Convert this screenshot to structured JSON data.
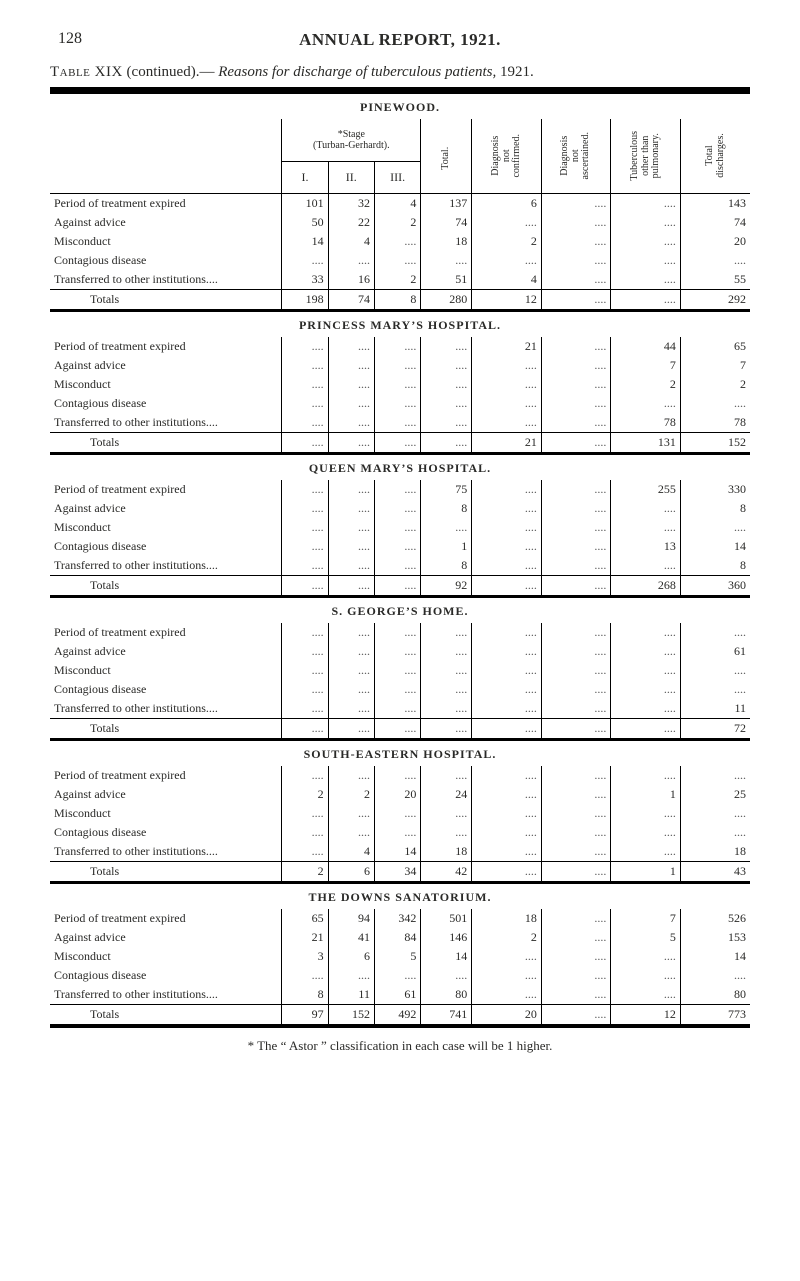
{
  "page": {
    "number": "128",
    "title": "ANNUAL REPORT, 1921.",
    "table_caption_a": "Table XIX",
    "table_caption_b": "(continued).—",
    "table_caption_c": "Reasons for discharge of tuberculous patients,",
    "table_caption_year": "1921.",
    "footnote": "* The “ Astor ” classification in each case will be 1 higher."
  },
  "headers": {
    "stage": "*Stage\n(Turban-Gerhardt).",
    "stage_i": "I.",
    "stage_ii": "II.",
    "stage_iii": "III.",
    "total": "Total.",
    "diag_not_confirmed": "Diagnosis\nnot\nconfirmed.",
    "diag_not_ascertained": "Diagnosis\nnot\nascertained.",
    "tub_other": "Tuberculous\nother than\npulmonary.",
    "total_discharges": "Total\ndischarges."
  },
  "row_labels": {
    "period_expired": "Period of treatment expired",
    "against_advice": "Against advice",
    "misconduct": "Misconduct",
    "contagious": "Contagious disease",
    "transferred": "Transferred to other institutions....",
    "totals": "Totals"
  },
  "sections": [
    {
      "name": "PINEWOOD.",
      "rows": [
        {
          "k": "period_expired",
          "i": "101",
          "ii": "32",
          "iii": "4",
          "t": "137",
          "dnc": "6",
          "dna": "",
          "tub": "",
          "td": "143"
        },
        {
          "k": "against_advice",
          "i": "50",
          "ii": "22",
          "iii": "2",
          "t": "74",
          "dnc": "",
          "dna": "",
          "tub": "",
          "td": "74"
        },
        {
          "k": "misconduct",
          "i": "14",
          "ii": "4",
          "iii": "",
          "t": "18",
          "dnc": "2",
          "dna": "",
          "tub": "",
          "td": "20"
        },
        {
          "k": "contagious",
          "i": "",
          "ii": "",
          "iii": "",
          "t": "",
          "dnc": "",
          "dna": "",
          "tub": "",
          "td": ""
        },
        {
          "k": "transferred",
          "i": "33",
          "ii": "16",
          "iii": "2",
          "t": "51",
          "dnc": "4",
          "dna": "",
          "tub": "",
          "td": "55"
        }
      ],
      "totals": {
        "i": "198",
        "ii": "74",
        "iii": "8",
        "t": "280",
        "dnc": "12",
        "dna": "",
        "tub": "",
        "td": "292"
      }
    },
    {
      "name": "PRINCESS MARY’S HOSPITAL.",
      "rows": [
        {
          "k": "period_expired",
          "i": "",
          "ii": "",
          "iii": "",
          "t": "",
          "dnc": "21",
          "dna": "",
          "tub": "44",
          "td": "65"
        },
        {
          "k": "against_advice",
          "i": "",
          "ii": "",
          "iii": "",
          "t": "",
          "dnc": "",
          "dna": "",
          "tub": "7",
          "td": "7"
        },
        {
          "k": "misconduct",
          "i": "",
          "ii": "",
          "iii": "",
          "t": "",
          "dnc": "",
          "dna": "",
          "tub": "2",
          "td": "2"
        },
        {
          "k": "contagious",
          "i": "",
          "ii": "",
          "iii": "",
          "t": "",
          "dnc": "",
          "dna": "",
          "tub": "",
          "td": ""
        },
        {
          "k": "transferred",
          "i": "",
          "ii": "",
          "iii": "",
          "t": "",
          "dnc": "",
          "dna": "",
          "tub": "78",
          "td": "78"
        }
      ],
      "totals": {
        "i": "",
        "ii": "",
        "iii": "",
        "t": "",
        "dnc": "21",
        "dna": "",
        "tub": "131",
        "td": "152"
      }
    },
    {
      "name": "QUEEN MARY’S HOSPITAL.",
      "rows": [
        {
          "k": "period_expired",
          "i": "",
          "ii": "",
          "iii": "",
          "t": "75",
          "dnc": "",
          "dna": "",
          "tub": "255",
          "td": "330"
        },
        {
          "k": "against_advice",
          "i": "",
          "ii": "",
          "iii": "",
          "t": "8",
          "dnc": "",
          "dna": "",
          "tub": "",
          "td": "8"
        },
        {
          "k": "misconduct",
          "i": "",
          "ii": "",
          "iii": "",
          "t": "",
          "dnc": "",
          "dna": "",
          "tub": "",
          "td": ""
        },
        {
          "k": "contagious",
          "i": "",
          "ii": "",
          "iii": "",
          "t": "1",
          "dnc": "",
          "dna": "",
          "tub": "13",
          "td": "14"
        },
        {
          "k": "transferred",
          "i": "",
          "ii": "",
          "iii": "",
          "t": "8",
          "dnc": "",
          "dna": "",
          "tub": "",
          "td": "8"
        }
      ],
      "totals": {
        "i": "",
        "ii": "",
        "iii": "",
        "t": "92",
        "dnc": "",
        "dna": "",
        "tub": "268",
        "td": "360"
      }
    },
    {
      "name": "S. GEORGE’S HOME.",
      "rows": [
        {
          "k": "period_expired",
          "i": "",
          "ii": "",
          "iii": "",
          "t": "",
          "dnc": "",
          "dna": "",
          "tub": "",
          "td": ""
        },
        {
          "k": "against_advice",
          "i": "",
          "ii": "",
          "iii": "",
          "t": "",
          "dnc": "",
          "dna": "",
          "tub": "",
          "td": "61"
        },
        {
          "k": "misconduct",
          "i": "",
          "ii": "",
          "iii": "",
          "t": "",
          "dnc": "",
          "dna": "",
          "tub": "",
          "td": ""
        },
        {
          "k": "contagious",
          "i": "",
          "ii": "",
          "iii": "",
          "t": "",
          "dnc": "",
          "dna": "",
          "tub": "",
          "td": ""
        },
        {
          "k": "transferred",
          "i": "",
          "ii": "",
          "iii": "",
          "t": "",
          "dnc": "",
          "dna": "",
          "tub": "",
          "td": "11"
        }
      ],
      "totals": {
        "i": "",
        "ii": "",
        "iii": "",
        "t": "",
        "dnc": "",
        "dna": "",
        "tub": "",
        "td": "72"
      }
    },
    {
      "name": "SOUTH-EASTERN HOSPITAL.",
      "rows": [
        {
          "k": "period_expired",
          "i": "",
          "ii": "",
          "iii": "",
          "t": "",
          "dnc": "",
          "dna": "",
          "tub": "",
          "td": ""
        },
        {
          "k": "against_advice",
          "i": "2",
          "ii": "2",
          "iii": "20",
          "t": "24",
          "dnc": "",
          "dna": "",
          "tub": "1",
          "td": "25"
        },
        {
          "k": "misconduct",
          "i": "",
          "ii": "",
          "iii": "",
          "t": "",
          "dnc": "",
          "dna": "",
          "tub": "",
          "td": ""
        },
        {
          "k": "contagious",
          "i": "",
          "ii": "",
          "iii": "",
          "t": "",
          "dnc": "",
          "dna": "",
          "tub": "",
          "td": ""
        },
        {
          "k": "transferred",
          "i": "",
          "ii": "4",
          "iii": "14",
          "t": "18",
          "dnc": "",
          "dna": "",
          "tub": "",
          "td": "18"
        }
      ],
      "totals": {
        "i": "2",
        "ii": "6",
        "iii": "34",
        "t": "42",
        "dnc": "",
        "dna": "",
        "tub": "1",
        "td": "43"
      }
    },
    {
      "name": "THE DOWNS SANATORIUM.",
      "rows": [
        {
          "k": "period_expired",
          "i": "65",
          "ii": "94",
          "iii": "342",
          "t": "501",
          "dnc": "18",
          "dna": "",
          "tub": "7",
          "td": "526"
        },
        {
          "k": "against_advice",
          "i": "21",
          "ii": "41",
          "iii": "84",
          "t": "146",
          "dnc": "2",
          "dna": "",
          "tub": "5",
          "td": "153"
        },
        {
          "k": "misconduct",
          "i": "3",
          "ii": "6",
          "iii": "5",
          "t": "14",
          "dnc": "",
          "dna": "",
          "tub": "",
          "td": "14"
        },
        {
          "k": "contagious",
          "i": "",
          "ii": "",
          "iii": "",
          "t": "",
          "dnc": "",
          "dna": "",
          "tub": "",
          "td": ""
        },
        {
          "k": "transferred",
          "i": "8",
          "ii": "11",
          "iii": "61",
          "t": "80",
          "dnc": "",
          "dna": "",
          "tub": "",
          "td": "80"
        }
      ],
      "totals": {
        "i": "97",
        "ii": "152",
        "iii": "492",
        "t": "741",
        "dnc": "20",
        "dna": "",
        "tub": "12",
        "td": "773"
      }
    }
  ]
}
